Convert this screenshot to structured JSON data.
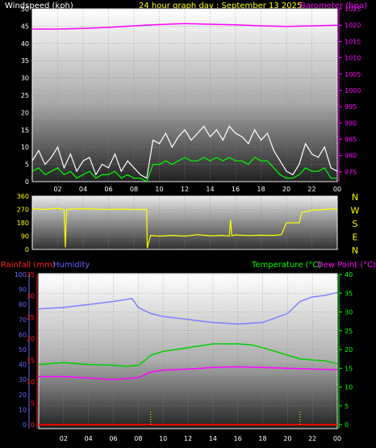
{
  "header": {
    "wind_label": "Windspeed (kph)",
    "title": "24 hour graph day : September 13 2025",
    "baro_label": "Barometer (hpa)"
  },
  "lower_header": {
    "rain_label": "Rainfall (mm)",
    "humidity_label": "Humidity",
    "temp_label": "Temperature (°C)",
    "dew_label": "Dew Point (°C)"
  },
  "colors": {
    "wind_gust": "#ffffff",
    "wind_avg": "#00ff00",
    "barometer": "#ff00ff",
    "direction": "#ffff00",
    "humidity": "#8080ff",
    "temperature": "#00cc00",
    "dewpoint": "#ff00ff",
    "rain": "#ff0000",
    "rain_axis": "#ff2020",
    "hum_axis": "#6666ff",
    "temp_axis": "#00ff00"
  },
  "compass": [
    "N",
    "W",
    "S",
    "E",
    "N"
  ],
  "chart_data": [
    {
      "type": "line",
      "name": "wind-barometer",
      "x_ticks": [
        "02",
        "04",
        "06",
        "08",
        "10",
        "12",
        "14",
        "16",
        "18",
        "20",
        "22",
        "00"
      ],
      "x_range": [
        0,
        24
      ],
      "y_left": {
        "label": "Windspeed (kph)",
        "range": [
          0,
          50
        ],
        "ticks": [
          0,
          5,
          10,
          15,
          20,
          25,
          30,
          35,
          40,
          45,
          50
        ]
      },
      "y_right": {
        "label": "Barometer (hpa)",
        "range": [
          972,
          1025
        ],
        "ticks": [
          975,
          980,
          985,
          990,
          995,
          1000,
          1005,
          1010,
          1015,
          1020,
          1025
        ]
      },
      "series": [
        {
          "name": "Windspeed (kph)",
          "axis": "left",
          "kind": "gust",
          "x": [
            0,
            0.5,
            1,
            1.5,
            2,
            2.5,
            3,
            3.5,
            4,
            4.5,
            5,
            5.5,
            6,
            6.5,
            7,
            7.5,
            8,
            8.5,
            9,
            9.5,
            10,
            10.5,
            11,
            11.5,
            12,
            12.5,
            13,
            13.5,
            14,
            14.5,
            15,
            15.5,
            16,
            16.5,
            17,
            17.5,
            18,
            18.5,
            19,
            19.5,
            20,
            20.5,
            21,
            21.5,
            22,
            22.5,
            23,
            23.5,
            24
          ],
          "y": [
            6,
            9,
            5,
            7,
            10,
            4,
            8,
            3,
            6,
            7,
            2,
            5,
            4,
            8,
            3,
            6,
            4,
            2,
            1,
            12,
            11,
            14,
            10,
            13,
            15,
            12,
            14,
            16,
            13,
            15,
            12,
            16,
            14,
            13,
            11,
            15,
            12,
            14,
            9,
            6,
            3,
            2,
            5,
            11,
            8,
            7,
            10,
            4,
            3
          ]
        },
        {
          "name": "Average",
          "axis": "left",
          "kind": "avg",
          "x": [
            0,
            0.5,
            1,
            1.5,
            2,
            2.5,
            3,
            3.5,
            4,
            4.5,
            5,
            5.5,
            6,
            6.5,
            7,
            7.5,
            8,
            8.5,
            9,
            9.5,
            10,
            10.5,
            11,
            11.5,
            12,
            12.5,
            13,
            13.5,
            14,
            14.5,
            15,
            15.5,
            16,
            16.5,
            17,
            17.5,
            18,
            18.5,
            19,
            19.5,
            20,
            20.5,
            21,
            21.5,
            22,
            22.5,
            23,
            23.5,
            24
          ],
          "y": [
            3,
            4,
            2,
            3,
            4,
            2,
            3,
            1,
            2,
            3,
            1,
            2,
            2,
            3,
            1,
            2,
            1,
            1,
            0,
            5,
            5,
            6,
            5,
            6,
            7,
            6,
            6,
            7,
            6,
            7,
            6,
            7,
            6,
            6,
            5,
            7,
            6,
            6,
            4,
            2,
            1,
            1,
            2,
            4,
            3,
            3,
            4,
            1,
            1
          ]
        },
        {
          "name": "Barometer (hpa)",
          "axis": "right",
          "kind": "baro",
          "x": [
            0,
            2,
            4,
            6,
            8,
            10,
            12,
            14,
            16,
            18,
            20,
            22,
            24
          ],
          "y": [
            1018.8,
            1018.8,
            1019.0,
            1019.3,
            1019.8,
            1020.2,
            1020.5,
            1020.3,
            1020.1,
            1019.8,
            1019.6,
            1019.8,
            1020.0
          ]
        }
      ]
    },
    {
      "type": "line",
      "name": "wind-direction",
      "x_range": [
        0,
        24
      ],
      "y_range": [
        0,
        360
      ],
      "ticks": [
        0,
        90,
        180,
        270,
        360
      ],
      "series": [
        {
          "name": "Direction",
          "x": [
            0,
            1,
            2,
            2.5,
            2.6,
            2.7,
            3,
            4,
            5,
            6,
            7,
            8,
            9,
            9.05,
            9.3,
            10,
            11,
            12,
            13,
            14,
            15,
            15.5,
            15.6,
            15.7,
            16,
            17,
            18,
            19,
            19.6,
            20,
            20.5,
            21,
            21.2,
            22,
            23,
            24
          ],
          "y": [
            275,
            270,
            278,
            270,
            15,
            270,
            272,
            275,
            272,
            270,
            272,
            270,
            270,
            10,
            95,
            90,
            95,
            90,
            100,
            92,
            95,
            90,
            200,
            92,
            98,
            94,
            96,
            95,
            100,
            180,
            180,
            180,
            250,
            265,
            270,
            275
          ]
        }
      ]
    },
    {
      "type": "line",
      "name": "temp-humidity-rain",
      "x_ticks": [
        "02",
        "04",
        "06",
        "08",
        "10",
        "12",
        "14",
        "16",
        "18",
        "20",
        "22",
        "00"
      ],
      "x_range": [
        0,
        24
      ],
      "y_left_rain": {
        "label": "Rainfall (mm)",
        "range": [
          0,
          35
        ],
        "ticks": [
          0,
          5,
          10,
          15,
          20,
          25,
          30,
          35
        ]
      },
      "y_left_hum": {
        "label": "Humidity",
        "range": [
          0,
          100
        ],
        "ticks": [
          0,
          10,
          20,
          30,
          40,
          50,
          60,
          70,
          80,
          90,
          100
        ]
      },
      "y_right": {
        "label": "Temperature (°C)",
        "range": [
          0,
          40
        ],
        "ticks": [
          0,
          5,
          10,
          15,
          20,
          25,
          30,
          35,
          40
        ]
      },
      "series": [
        {
          "name": "Humidity",
          "axis": "hum",
          "x": [
            0,
            2,
            4,
            6,
            7.5,
            8,
            9,
            10,
            12,
            14,
            16,
            18,
            20,
            21,
            22,
            23,
            24
          ],
          "y": [
            77,
            78,
            80,
            82,
            84,
            78,
            74,
            72,
            70,
            68,
            67,
            68,
            74,
            82,
            85,
            86,
            88
          ]
        },
        {
          "name": "Temperature (°C)",
          "axis": "temp",
          "x": [
            0,
            2,
            4,
            6,
            7,
            8,
            8.5,
            9,
            10,
            12,
            14,
            16,
            17,
            18,
            19,
            20,
            21,
            22,
            23,
            24
          ],
          "y": [
            16,
            16.5,
            16,
            15.8,
            15.5,
            15.8,
            17,
            18.5,
            19.5,
            20.5,
            21.5,
            21.5,
            21.3,
            20.5,
            19.5,
            18.5,
            17.5,
            17.2,
            17,
            16.2
          ]
        },
        {
          "name": "Dew Point (°C)",
          "axis": "temp",
          "x": [
            0,
            2,
            4,
            6,
            8,
            9,
            10,
            12,
            14,
            16,
            18,
            20,
            22,
            24
          ],
          "y": [
            12.8,
            12.8,
            12.4,
            12,
            12.5,
            14,
            14.5,
            14.8,
            15.2,
            15.4,
            15.2,
            15,
            14.8,
            14.6
          ]
        },
        {
          "name": "Rainfall (mm)",
          "axis": "rain",
          "x": [
            0,
            24
          ],
          "y": [
            0,
            0
          ]
        }
      ]
    }
  ]
}
